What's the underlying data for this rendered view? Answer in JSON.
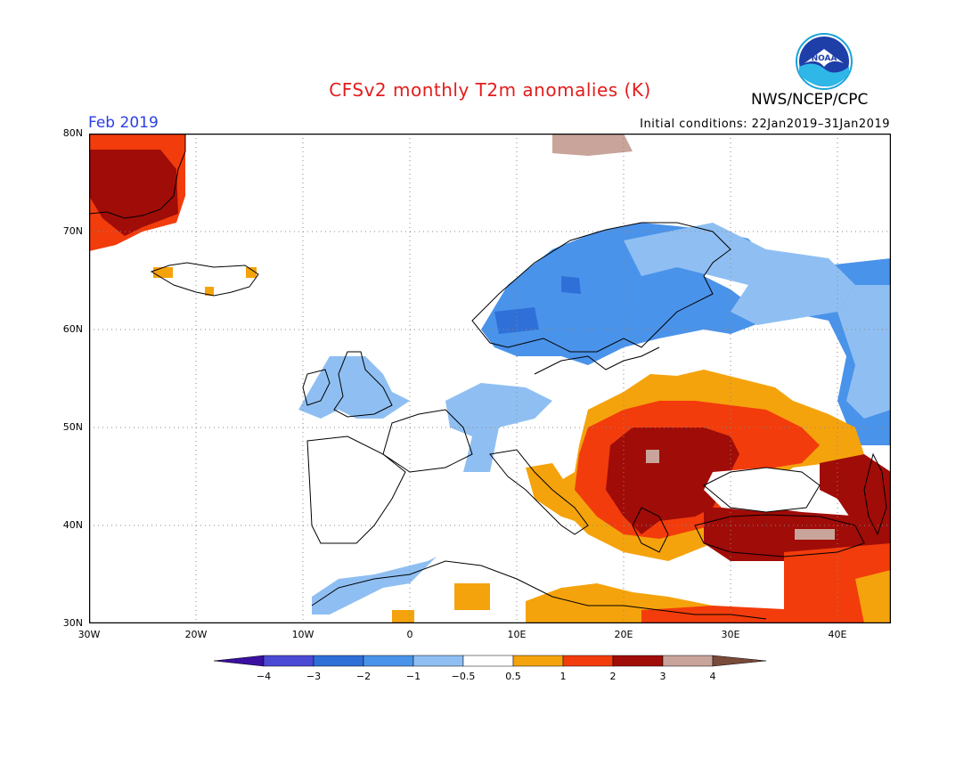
{
  "title": "CFSv2 monthly T2m anomalies (K)",
  "agency": "NWS/NCEP/CPC",
  "logo_text": "NOAA",
  "valid_month": "Feb 2019",
  "initial_conditions": "Initial conditions: 22Jan2019–31Jan2019",
  "axes": {
    "lat_labels": [
      "80N",
      "70N",
      "60N",
      "50N",
      "40N",
      "30N"
    ],
    "lon_labels": [
      "30W",
      "20W",
      "10W",
      "0",
      "10E",
      "20E",
      "30E",
      "40E"
    ],
    "lon_range": [
      -30,
      45
    ],
    "lat_range": [
      30,
      80
    ],
    "grid": "dotted"
  },
  "legend": {
    "labels": [
      "−4",
      "−3",
      "−2",
      "−1",
      "−0.5",
      "0.5",
      "1",
      "2",
      "3",
      "4"
    ],
    "colors": [
      "#3b0fa0",
      "#4a4ad4",
      "#2f6fd8",
      "#4a93ea",
      "#8fbff2",
      "#ffffff",
      "#f5a30c",
      "#f23c0c",
      "#a00c08",
      "#c8a49a",
      "#7a4a3a"
    ]
  },
  "regions": [
    {
      "name": "greenland",
      "anomaly": "2 to 3"
    },
    {
      "name": "scandinavia",
      "anomaly": "-1 to -2"
    },
    {
      "name": "british-isles",
      "anomaly": "-0.5 to -1"
    },
    {
      "name": "balkans-black-sea",
      "anomaly": "2 to 4"
    },
    {
      "name": "western-russia",
      "anomaly": "-0.5 to -1"
    },
    {
      "name": "north-africa",
      "anomaly": "0.5 to 2"
    }
  ]
}
